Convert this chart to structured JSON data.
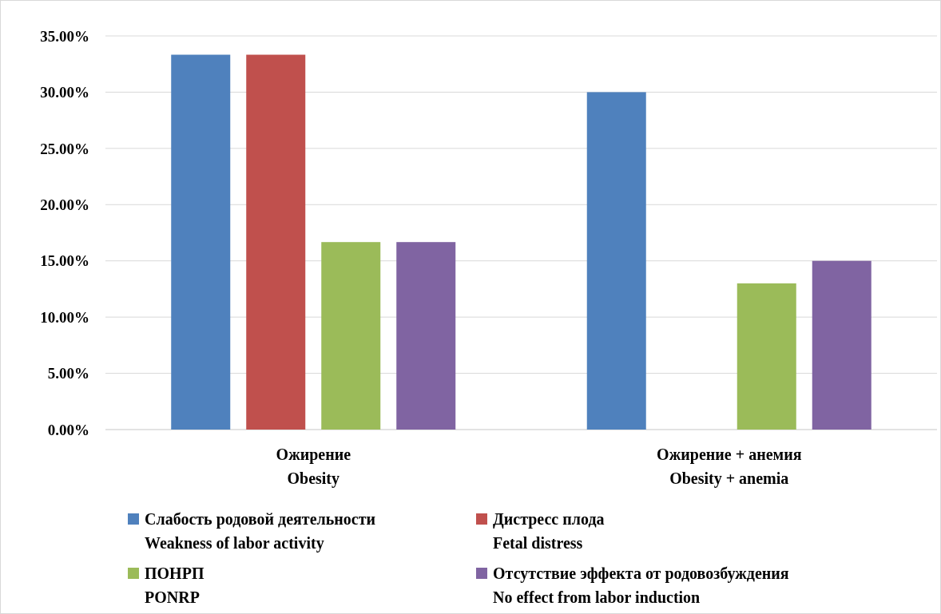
{
  "chart_data": {
    "type": "bar",
    "categories": [
      "Ожирение\nObesity",
      "Ожирение + анемия\nObesity + anemia"
    ],
    "series": [
      {
        "name": "Слабость родовой деятельности\nWeakness of labor activity",
        "color": "#4f81bd",
        "values": [
          33.33,
          30
        ]
      },
      {
        "name": "Дистресс плода\nFetal distress",
        "color": "#c0504d",
        "values": [
          33.33,
          0
        ]
      },
      {
        "name": "ПОНРП\nPONRP",
        "color": "#9bbb59",
        "values": [
          16.67,
          13
        ]
      },
      {
        "name": "Отсутствие эффекта от родовозбуждения\nNo effect from labor induction",
        "color": "#8064a2",
        "values": [
          16.67,
          15
        ]
      }
    ],
    "ylim": [
      0,
      35
    ],
    "yticks": [
      {
        "value": 0,
        "label": "0.00%"
      },
      {
        "value": 5,
        "label": "5.00%"
      },
      {
        "value": 10,
        "label": "10.00%"
      },
      {
        "value": 15,
        "label": "15.00%"
      },
      {
        "value": 20,
        "label": "20.00%"
      },
      {
        "value": 25,
        "label": "25.00%"
      },
      {
        "value": 30,
        "label": "30.00%"
      },
      {
        "value": 35,
        "label": "35.00%"
      }
    ],
    "grid": "y",
    "legend": "bottom"
  }
}
